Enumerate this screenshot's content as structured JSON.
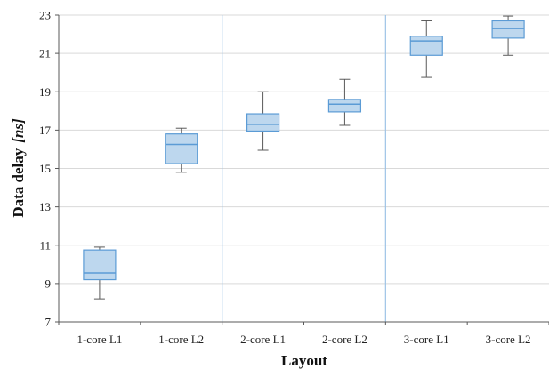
{
  "chart_data": {
    "type": "box",
    "xlabel": "Layout",
    "ylabel_main": "Data delay",
    "ylabel_unit": "[ns]",
    "ylim": [
      7,
      23
    ],
    "yticks": [
      7,
      9,
      11,
      13,
      15,
      17,
      19,
      21,
      23
    ],
    "grid": true,
    "categories": [
      "1-core L1",
      "1-core L2",
      "2-core L1",
      "2-core L2",
      "3-core L1",
      "3-core L2"
    ],
    "boxes": [
      {
        "category": "1-core L1",
        "min": 8.2,
        "q1": 9.2,
        "median": 9.55,
        "q3": 10.75,
        "max": 10.9
      },
      {
        "category": "1-core L2",
        "min": 14.8,
        "q1": 15.25,
        "median": 16.25,
        "q3": 16.8,
        "max": 17.1
      },
      {
        "category": "2-core L1",
        "min": 15.95,
        "q1": 16.95,
        "median": 17.3,
        "q3": 17.85,
        "max": 19.0
      },
      {
        "category": "2-core L2",
        "min": 17.25,
        "q1": 17.95,
        "median": 18.35,
        "q3": 18.6,
        "max": 19.65
      },
      {
        "category": "3-core L1",
        "min": 19.75,
        "q1": 20.9,
        "median": 21.65,
        "q3": 21.9,
        "max": 22.7
      },
      {
        "category": "3-core L2",
        "min": 20.9,
        "q1": 21.8,
        "median": 22.3,
        "q3": 22.7,
        "max": 22.95
      }
    ],
    "group_separators_after": [
      2,
      4
    ],
    "colors": {
      "box_fill": "#bdd7ee",
      "box_stroke": "#5b9bd5",
      "whisker": "#595959",
      "grid": "#d9d9d9",
      "separator": "#9dc3e6",
      "axis": "#595959"
    }
  }
}
